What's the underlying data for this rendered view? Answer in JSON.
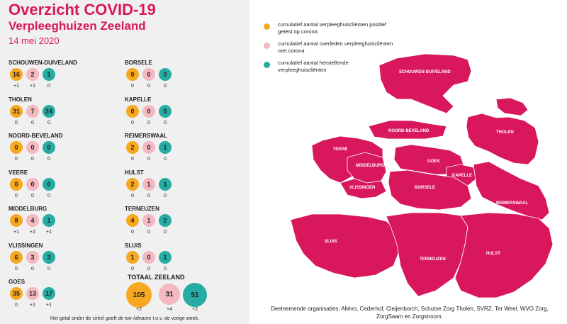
{
  "header": {
    "title": "Overzicht COVID-19",
    "subtitle": "Verpleeghuizen Zeeland",
    "date": "14 mei 2020"
  },
  "colors": {
    "brand": "#d8175d",
    "positive": "#f6a821",
    "deceased": "#f4b8c0",
    "recovered": "#27aca3"
  },
  "regions": [
    {
      "name": "SCHOUWEN-DUIVELAND",
      "positive": "16",
      "deceased": "2",
      "recovered": "1",
      "d_positive": "+1",
      "d_deceased": "+1",
      "d_recovered": "0"
    },
    {
      "name": "THOLEN",
      "positive": "31",
      "deceased": "7",
      "recovered": "24",
      "d_positive": "0",
      "d_deceased": "0",
      "d_recovered": "0"
    },
    {
      "name": "NOORD-BEVELAND",
      "positive": "0",
      "deceased": "0",
      "recovered": "0",
      "d_positive": "0",
      "d_deceased": "0",
      "d_recovered": "0"
    },
    {
      "name": "VEERE",
      "positive": "0",
      "deceased": "0",
      "recovered": "0",
      "d_positive": "0",
      "d_deceased": "0",
      "d_recovered": "0"
    },
    {
      "name": "MIDDELBURG",
      "positive": "8",
      "deceased": "4",
      "recovered": "1",
      "d_positive": "+1",
      "d_deceased": "+2",
      "d_recovered": "+1"
    },
    {
      "name": "VLISSINGEN",
      "positive": "6",
      "deceased": "3",
      "recovered": "3",
      "d_positive": "0",
      "d_deceased": "0",
      "d_recovered": "0"
    },
    {
      "name": "GOES",
      "positive": "35",
      "deceased": "13",
      "recovered": "17",
      "d_positive": "0",
      "d_deceased": "+1",
      "d_recovered": "+1"
    },
    {
      "name": "BORSELE",
      "positive": "0",
      "deceased": "0",
      "recovered": "0",
      "d_positive": "0",
      "d_deceased": "0",
      "d_recovered": "0"
    },
    {
      "name": "KAPELLE",
      "positive": "0",
      "deceased": "0",
      "recovered": "0",
      "d_positive": "0",
      "d_deceased": "0",
      "d_recovered": "0"
    },
    {
      "name": "REIMERSWAAL",
      "positive": "2",
      "deceased": "0",
      "recovered": "1",
      "d_positive": "0",
      "d_deceased": "0",
      "d_recovered": "0"
    },
    {
      "name": "HULST",
      "positive": "2",
      "deceased": "1",
      "recovered": "1",
      "d_positive": "0",
      "d_deceased": "0",
      "d_recovered": "0"
    },
    {
      "name": "TERNEUZEN",
      "positive": "4",
      "deceased": "1",
      "recovered": "2",
      "d_positive": "0",
      "d_deceased": "0",
      "d_recovered": "0"
    },
    {
      "name": "SLUIS",
      "positive": "1",
      "deceased": "0",
      "recovered": "1",
      "d_positive": "0",
      "d_deceased": "0",
      "d_recovered": "0"
    }
  ],
  "total": {
    "title": "TOTAAL ZEELAND",
    "positive": "105",
    "deceased": "31",
    "recovered": "51",
    "d_positive": "+2",
    "d_deceased": "+4",
    "d_recovered": "+2"
  },
  "footnote": "Het getal onder de cirkel geeft de toe-/afname t.o.v. de vorige week.",
  "legend": [
    {
      "text": "cumulatief aantal verpleeghuiscliënten positief getest op corona",
      "color": "#f6a821"
    },
    {
      "text": "cumulatief aantal overleden verpleeghuiscliënten met corona",
      "color": "#f4b8c0"
    },
    {
      "text": "cumulatief aantal herstellende verpleeghuiscliënten",
      "color": "#27aca3"
    }
  ],
  "map": {
    "labels": {
      "schouwen": "SCHOUWEN-DUIVELAND",
      "tholen": "THOLEN",
      "noordbeveland": "NOORD-BEVELAND",
      "veere": "VEERE",
      "middelburg": "MIDDELBURG",
      "vlissingen": "VLISSINGEN",
      "goes": "GOES",
      "kapelle": "KAPELLE",
      "borsele": "BORSELE",
      "reimerswaal": "REIMERSWAAL",
      "sluis": "SLUIS",
      "terneuzen": "TERNEUZEN",
      "hulst": "HULST"
    }
  },
  "organisations": "Deelnemende organisaties: Allévo, Cederhof, Cleijenborch, Schutse Zorg Tholen, SVRZ, Ter Weel, WVO Zorg, ZorgSaam en Zorgstroom."
}
